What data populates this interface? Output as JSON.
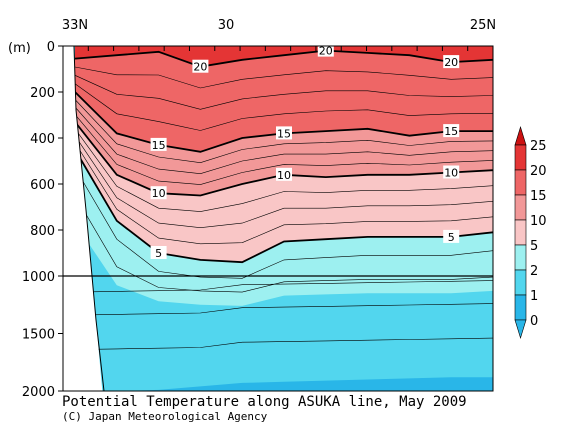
{
  "chart_data": {
    "type": "contour",
    "title": "Potential Temperature along ASUKA line, May 2009",
    "credit": "(C) Japan Meteorological Agency",
    "ylabel": "(m)",
    "x_ticks": [
      "33N",
      "30",
      "25N"
    ],
    "y_ticks_upper": [
      0,
      200,
      400,
      600,
      800,
      1000
    ],
    "y_ticks_lower": [
      1500,
      2000
    ],
    "ylim": [
      0,
      2000
    ],
    "y_break": 1000,
    "colorbar": {
      "levels": [
        0,
        1,
        2,
        5,
        10,
        15,
        20,
        25
      ],
      "colors": [
        "#29b6e8",
        "#52d6ee",
        "#9df0f0",
        "#f9c6c6",
        "#f29898",
        "#ee6666",
        "#e43535",
        "#cc1111"
      ]
    },
    "labeled_contours": [
      {
        "value": 20,
        "depths_m": [
          55,
          40,
          25,
          90,
          60,
          40,
          20,
          30,
          40,
          70,
          60
        ]
      },
      {
        "value": 15,
        "depths_m": [
          200,
          380,
          430,
          460,
          400,
          380,
          370,
          360,
          390,
          370,
          370
        ]
      },
      {
        "value": 10,
        "depths_m": [
          330,
          560,
          640,
          650,
          600,
          560,
          570,
          560,
          560,
          550,
          540
        ]
      },
      {
        "value": 5,
        "depths_m": [
          450,
          760,
          900,
          930,
          940,
          850,
          840,
          830,
          830,
          830,
          810
        ]
      }
    ],
    "contour_label_texts": [
      "20",
      "20",
      "20",
      "15",
      "15",
      "15",
      "10",
      "10",
      "10",
      "5",
      "5"
    ]
  }
}
